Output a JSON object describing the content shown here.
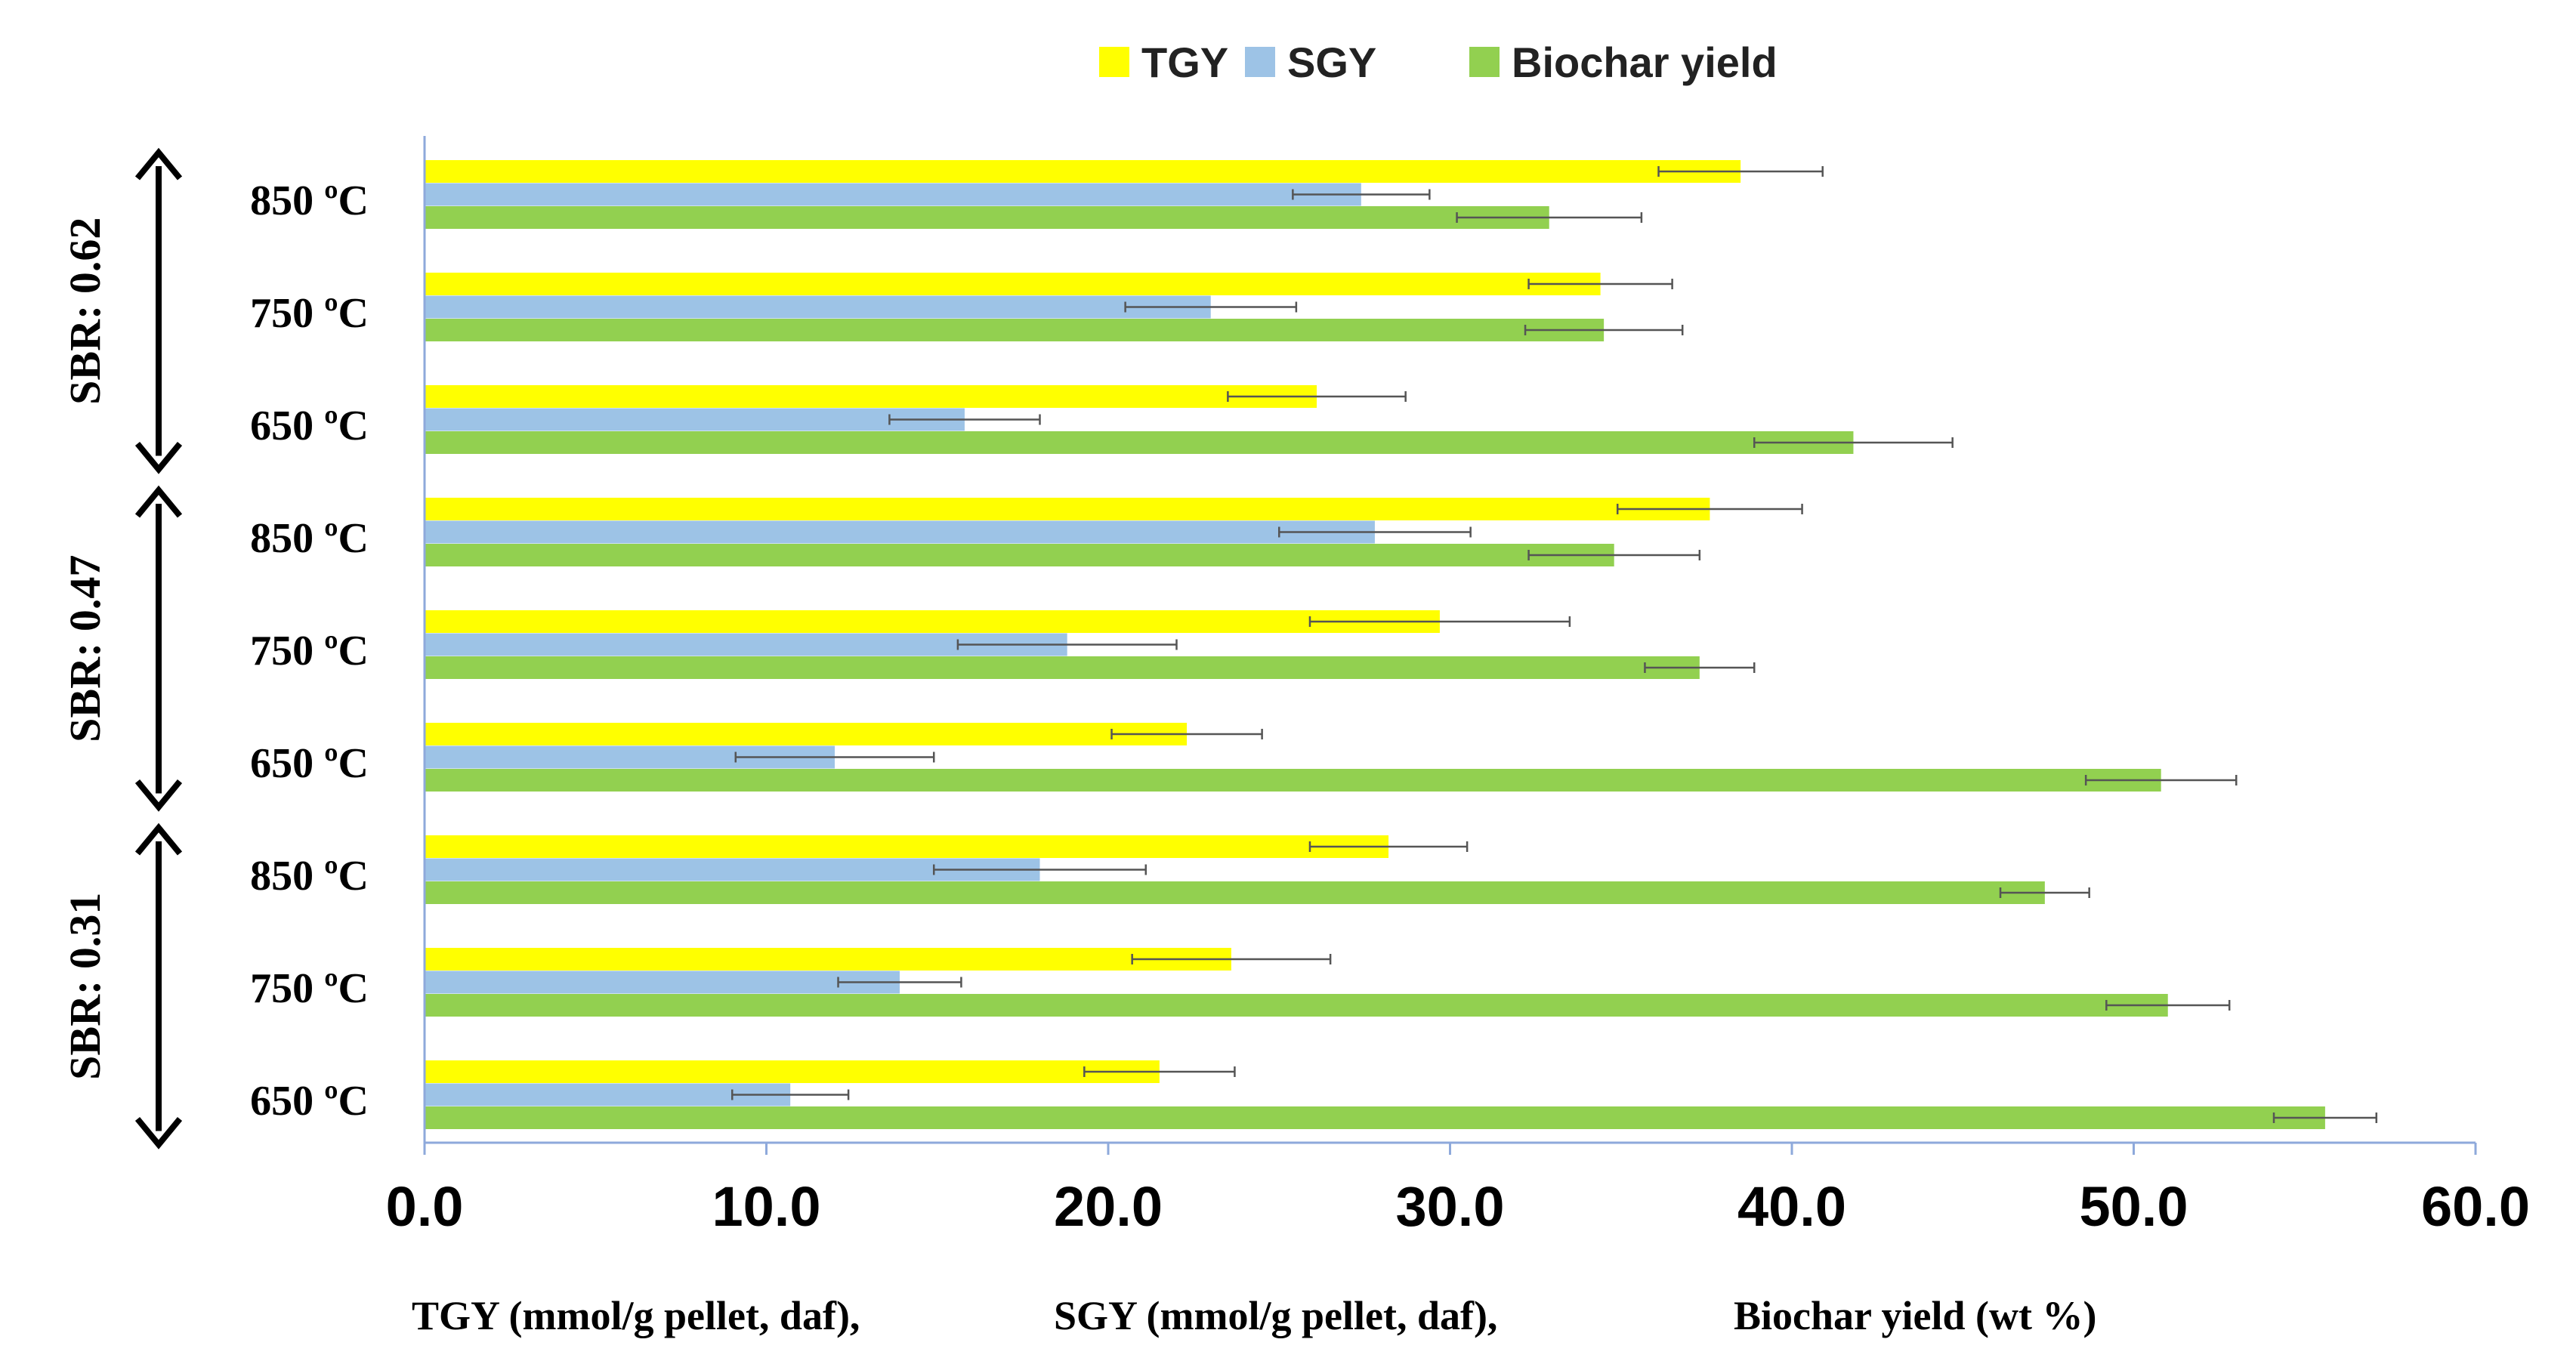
{
  "chart_data": {
    "type": "bar",
    "orientation": "horizontal",
    "title": "",
    "legend_position": "top",
    "grid": false,
    "xlim": [
      0,
      60
    ],
    "x_ticks": [
      "0.0",
      "10.0",
      "20.0",
      "30.0",
      "40.0",
      "50.0",
      "60.0"
    ],
    "xlabel_parts": [
      "TGY (mmol/g pellet, daf),",
      "SGY (mmol/g pellet, daf),",
      "Biochar yield (wt %)"
    ],
    "groups": [
      {
        "label": "SBR: 0.62",
        "categories": [
          "850 ºC",
          "750 ºC",
          "650 ºC"
        ]
      },
      {
        "label": "SBR: 0.47",
        "categories": [
          "850 ºC",
          "750 ºC",
          "650 ºC"
        ]
      },
      {
        "label": "SBR: 0.31",
        "categories": [
          "850 ºC",
          "750 ºC",
          "650 ºC"
        ]
      }
    ],
    "series": [
      {
        "name": "TGY",
        "color": "#FFFF00",
        "values": [
          38.5,
          34.4,
          26.1,
          37.6,
          29.7,
          22.3,
          28.2,
          23.6,
          21.5
        ],
        "errors": [
          2.4,
          2.1,
          2.6,
          2.7,
          3.8,
          2.2,
          2.3,
          2.9,
          2.2
        ]
      },
      {
        "name": "SGY",
        "color": "#9DC3E6",
        "values": [
          27.4,
          23.0,
          15.8,
          27.8,
          18.8,
          12.0,
          18.0,
          13.9,
          10.7
        ],
        "errors": [
          2.0,
          2.5,
          2.2,
          2.8,
          3.2,
          2.9,
          3.1,
          1.8,
          1.7
        ]
      },
      {
        "name": "Biochar yield",
        "color": "#92D050",
        "values": [
          32.9,
          34.5,
          41.8,
          34.8,
          37.3,
          50.8,
          47.4,
          51.0,
          55.6
        ],
        "errors": [
          2.7,
          2.3,
          2.9,
          2.5,
          1.6,
          2.2,
          1.3,
          1.8,
          1.5
        ]
      }
    ]
  }
}
